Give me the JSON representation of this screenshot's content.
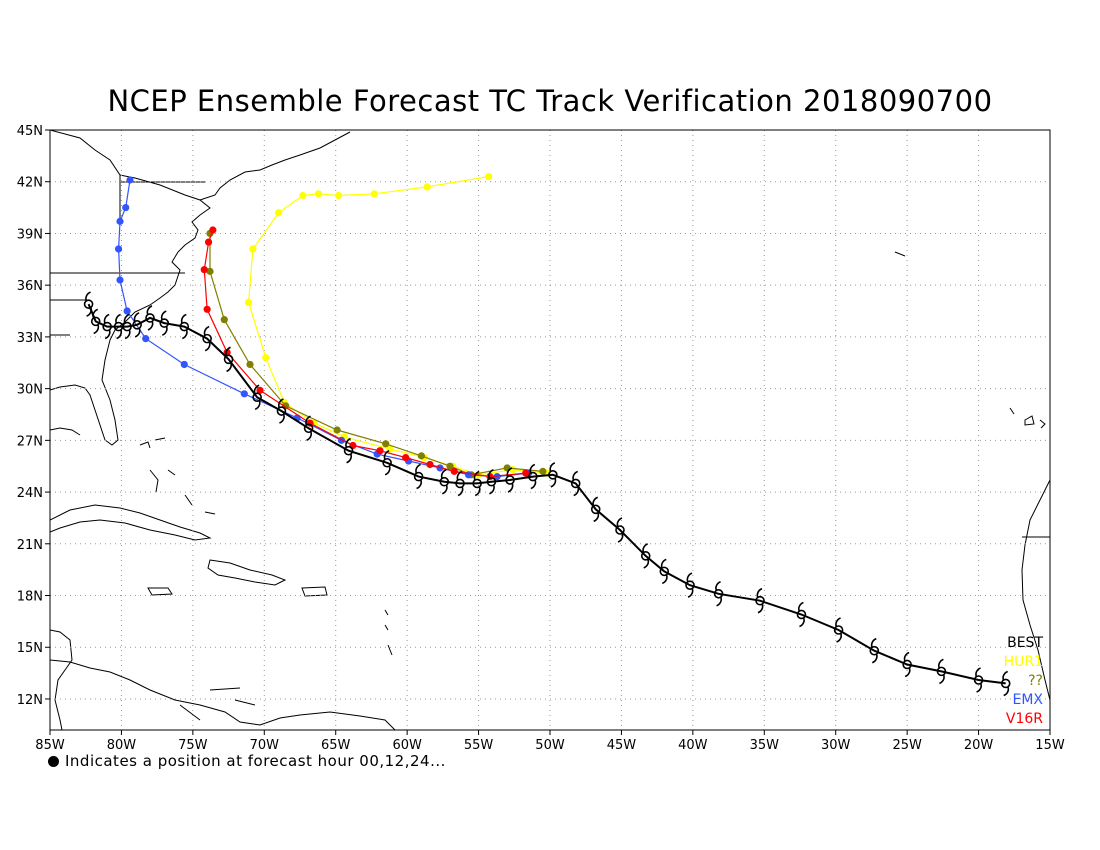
{
  "title": "NCEP Ensemble Forecast TC Track Verification 2018090700",
  "footnote": "Indicates a position at forecast hour 00,12,24...",
  "lon_ticks": [
    "85W",
    "80W",
    "75W",
    "70W",
    "65W",
    "60W",
    "55W",
    "50W",
    "45W",
    "40W",
    "35W",
    "30W",
    "25W",
    "20W",
    "15W"
  ],
  "lat_ticks": [
    "45N",
    "42N",
    "39N",
    "36N",
    "33N",
    "30N",
    "27N",
    "24N",
    "21N",
    "18N",
    "15N",
    "12N"
  ],
  "map_extent": {
    "lon_min": -85,
    "lon_max": -15,
    "lat_min": 10.2,
    "lat_max": 45
  },
  "legend": [
    {
      "name": "BEST",
      "color": "#000000"
    },
    {
      "name": "HUR1",
      "color": "#ffff00"
    },
    {
      "name": "??",
      "color": "#808000"
    },
    {
      "name": "EMX",
      "color": "#3355ff"
    },
    {
      "name": "V16R",
      "color": "#ff0000"
    }
  ],
  "tracks": [
    {
      "name": "BEST",
      "color": "#000000",
      "marker": "hurricane-symbol",
      "points": [
        [
          -18.1,
          12.9
        ],
        [
          -20.0,
          13.1
        ],
        [
          -22.6,
          13.6
        ],
        [
          -25.0,
          14.0
        ],
        [
          -27.3,
          14.8
        ],
        [
          -29.8,
          16.0
        ],
        [
          -32.4,
          16.9
        ],
        [
          -35.3,
          17.7
        ],
        [
          -38.2,
          18.1
        ],
        [
          -40.2,
          18.6
        ],
        [
          -42.0,
          19.4
        ],
        [
          -43.3,
          20.3
        ],
        [
          -45.1,
          21.8
        ],
        [
          -46.8,
          23.0
        ],
        [
          -48.2,
          24.5
        ],
        [
          -49.8,
          25.0
        ],
        [
          -51.2,
          24.9
        ],
        [
          -52.8,
          24.7
        ],
        [
          -54.1,
          24.6
        ],
        [
          -55.1,
          24.5
        ],
        [
          -56.3,
          24.5
        ],
        [
          -57.4,
          24.6
        ],
        [
          -59.2,
          24.9
        ],
        [
          -61.4,
          25.7
        ],
        [
          -64.1,
          26.4
        ],
        [
          -66.9,
          27.7
        ],
        [
          -68.8,
          28.7
        ],
        [
          -70.5,
          29.5
        ],
        [
          -72.5,
          31.7
        ],
        [
          -74.0,
          32.9
        ],
        [
          -75.6,
          33.6
        ],
        [
          -77.0,
          33.8
        ],
        [
          -78.0,
          34.1
        ],
        [
          -78.9,
          33.7
        ],
        [
          -79.6,
          33.6
        ],
        [
          -80.2,
          33.6
        ],
        [
          -81.0,
          33.6
        ],
        [
          -81.8,
          33.9
        ],
        [
          -82.3,
          34.9
        ]
      ]
    },
    {
      "name": "HUR1",
      "color": "#ffff00",
      "marker": "dot",
      "points": [
        [
          -50.2,
          25.1
        ],
        [
          -52.6,
          25.3
        ],
        [
          -55.0,
          25.0
        ],
        [
          -56.8,
          25.5
        ],
        [
          -58.8,
          26.0
        ],
        [
          -61.2,
          26.5
        ],
        [
          -64.4,
          27.2
        ],
        [
          -66.5,
          28.0
        ],
        [
          -68.6,
          29.2
        ],
        [
          -69.9,
          31.8
        ],
        [
          -71.1,
          35.0
        ],
        [
          -70.8,
          38.1
        ],
        [
          -69.0,
          40.2
        ],
        [
          -67.3,
          41.2
        ],
        [
          -66.2,
          41.3
        ],
        [
          -64.8,
          41.2
        ],
        [
          -62.3,
          41.3
        ],
        [
          -58.6,
          41.7
        ],
        [
          -54.3,
          42.3
        ]
      ]
    },
    {
      "name": "??",
      "color": "#808000",
      "marker": "dot",
      "points": [
        [
          -50.5,
          25.2
        ],
        [
          -53.0,
          25.4
        ],
        [
          -55.5,
          25.0
        ],
        [
          -57.0,
          25.5
        ],
        [
          -59.0,
          26.1
        ],
        [
          -61.5,
          26.8
        ],
        [
          -64.9,
          27.6
        ],
        [
          -68.5,
          29.0
        ],
        [
          -71.0,
          31.4
        ],
        [
          -72.8,
          34.0
        ],
        [
          -73.8,
          36.8
        ],
        [
          -73.8,
          39.0
        ]
      ]
    },
    {
      "name": "EMX",
      "color": "#3355ff",
      "marker": "dot",
      "points": [
        [
          -51.5,
          25.1
        ],
        [
          -53.7,
          24.9
        ],
        [
          -55.7,
          25.0
        ],
        [
          -57.7,
          25.4
        ],
        [
          -59.9,
          25.8
        ],
        [
          -62.1,
          26.2
        ],
        [
          -64.6,
          27.0
        ],
        [
          -67.7,
          28.3
        ],
        [
          -71.4,
          29.7
        ],
        [
          -75.6,
          31.4
        ],
        [
          -78.3,
          32.9
        ],
        [
          -79.6,
          34.5
        ],
        [
          -80.1,
          36.3
        ],
        [
          -80.2,
          38.1
        ],
        [
          -80.1,
          39.7
        ],
        [
          -79.7,
          40.5
        ],
        [
          -79.4,
          42.1
        ]
      ]
    },
    {
      "name": "V16R",
      "color": "#ff0000",
      "marker": "dot",
      "points": [
        [
          -51.7,
          25.1
        ],
        [
          -54.2,
          24.9
        ],
        [
          -56.7,
          25.2
        ],
        [
          -58.4,
          25.6
        ],
        [
          -60.1,
          26.0
        ],
        [
          -61.9,
          26.4
        ],
        [
          -63.8,
          26.7
        ],
        [
          -66.8,
          28.0
        ],
        [
          -70.3,
          29.9
        ],
        [
          -72.6,
          32.1
        ],
        [
          -74.0,
          34.6
        ],
        [
          -74.2,
          36.9
        ],
        [
          -73.9,
          38.5
        ],
        [
          -73.6,
          39.2
        ]
      ]
    }
  ]
}
